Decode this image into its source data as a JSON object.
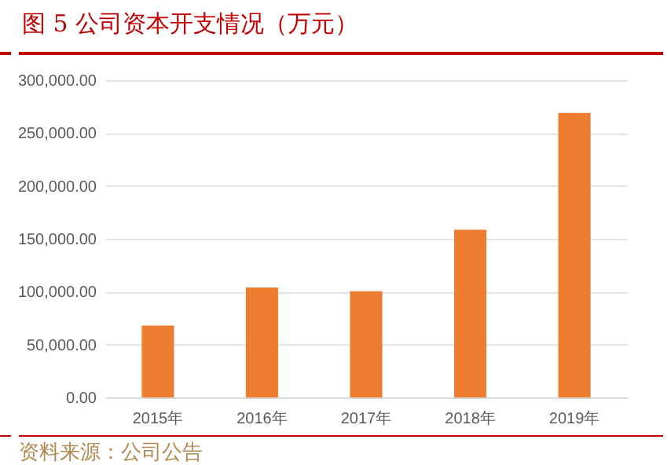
{
  "chart_data": {
    "type": "bar",
    "title": "图 5 公司资本开支情况（万元）",
    "categories": [
      "2015年",
      "2016年",
      "2017年",
      "2018年",
      "2019年"
    ],
    "values": [
      68000,
      104000,
      100500,
      158500,
      269000
    ],
    "color": "#ed7d31",
    "ylim": [
      0,
      300000
    ],
    "yticks": [
      {
        "value": 0,
        "label": "0.00"
      },
      {
        "value": 50000,
        "label": "50,000.00"
      },
      {
        "value": 100000,
        "label": "100,000.00"
      },
      {
        "value": 150000,
        "label": "150,000.00"
      },
      {
        "value": 200000,
        "label": "200,000.00"
      },
      {
        "value": 250000,
        "label": "250,000.00"
      },
      {
        "value": 300000,
        "label": "300,000.00"
      }
    ],
    "grid": "y",
    "annotations": [
      "资料来源：公司公告"
    ]
  }
}
